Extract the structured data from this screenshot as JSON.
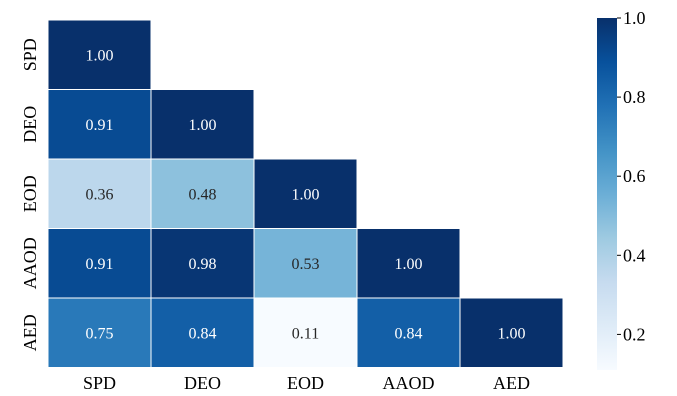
{
  "chart_data": {
    "type": "heatmap",
    "title": "",
    "xlabel": "",
    "ylabel": "",
    "rows": [
      "SPD",
      "DEO",
      "EOD",
      "AAOD",
      "AED"
    ],
    "cols": [
      "SPD",
      "DEO",
      "EOD",
      "AAOD",
      "AED"
    ],
    "values": [
      [
        1.0,
        null,
        null,
        null,
        null
      ],
      [
        0.91,
        1.0,
        null,
        null,
        null
      ],
      [
        0.36,
        0.48,
        1.0,
        null,
        null
      ],
      [
        0.91,
        0.98,
        0.53,
        1.0,
        null
      ],
      [
        0.75,
        0.84,
        0.11,
        0.84,
        1.0
      ]
    ],
    "value_labels": [
      [
        "1.00",
        null,
        null,
        null,
        null
      ],
      [
        "0.91",
        "1.00",
        null,
        null,
        null
      ],
      [
        "0.36",
        "0.48",
        "1.00",
        null,
        null
      ],
      [
        "0.91",
        "0.98",
        "0.53",
        "1.00",
        null
      ],
      [
        "0.75",
        "0.84",
        "0.11",
        "0.84",
        "1.00"
      ]
    ],
    "mask": "upper-triangle",
    "colormap": "Blues",
    "colorbar": {
      "range": [
        0.11,
        1.0
      ],
      "ticks": [
        0.2,
        0.4,
        0.6,
        0.8,
        1.0
      ],
      "tick_labels": [
        "0.2",
        "0.4",
        "0.6",
        "0.8",
        "1.0"
      ]
    },
    "grid": false,
    "legend": "colorbar-right"
  }
}
